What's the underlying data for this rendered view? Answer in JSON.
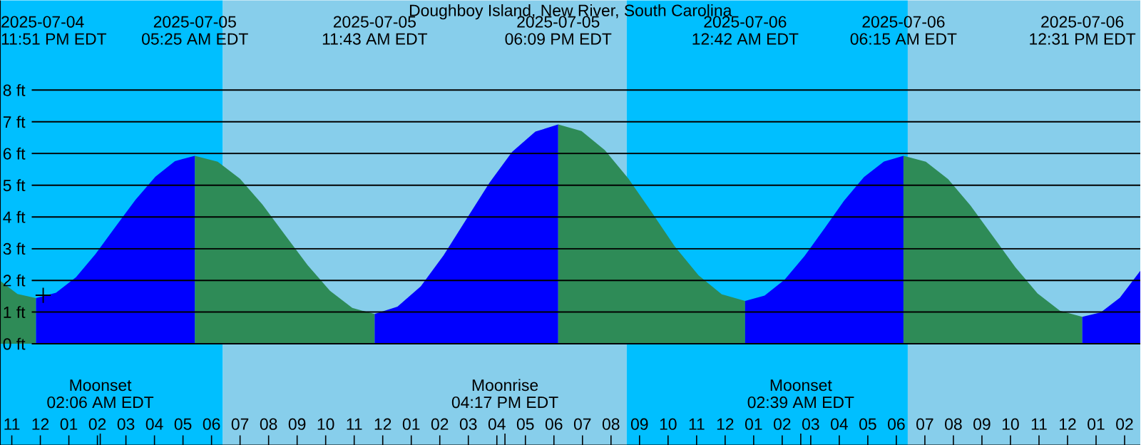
{
  "chart_data": {
    "type": "area",
    "title": "Doughboy Island, New River, South Carolina",
    "xlim": [
      "2025-07-04T22:36",
      "2025-07-06T14:33"
    ],
    "ylim": [
      -3.19,
      10.83
    ],
    "xticks": [
      {
        "value": "2025-07-04T23:00",
        "label": "11"
      },
      {
        "value": "2025-07-05T00:00",
        "label": "12"
      },
      {
        "value": "2025-07-05T01:00",
        "label": "01"
      },
      {
        "value": "2025-07-05T02:00",
        "label": "02"
      },
      {
        "value": "2025-07-05T02:06",
        "label": null
      },
      {
        "value": "2025-07-05T03:00",
        "label": "03"
      },
      {
        "value": "2025-07-05T04:00",
        "label": "04"
      },
      {
        "value": "2025-07-05T05:00",
        "label": "05"
      },
      {
        "value": "2025-07-05T06:00",
        "label": "06"
      },
      {
        "value": "2025-07-05T07:00",
        "label": "07"
      },
      {
        "value": "2025-07-05T08:00",
        "label": "08"
      },
      {
        "value": "2025-07-05T09:00",
        "label": "09"
      },
      {
        "value": "2025-07-05T10:00",
        "label": "10"
      },
      {
        "value": "2025-07-05T11:00",
        "label": "11"
      },
      {
        "value": "2025-07-05T12:00",
        "label": "12"
      },
      {
        "value": "2025-07-05T13:00",
        "label": "01"
      },
      {
        "value": "2025-07-05T14:00",
        "label": "02"
      },
      {
        "value": "2025-07-05T15:00",
        "label": "03"
      },
      {
        "value": "2025-07-05T16:00",
        "label": "04"
      },
      {
        "value": "2025-07-05T16:17",
        "label": null
      },
      {
        "value": "2025-07-05T17:00",
        "label": "05"
      },
      {
        "value": "2025-07-05T18:00",
        "label": "06"
      },
      {
        "value": "2025-07-05T19:00",
        "label": "07"
      },
      {
        "value": "2025-07-05T20:00",
        "label": "08"
      },
      {
        "value": "2025-07-05T21:00",
        "label": "09"
      },
      {
        "value": "2025-07-05T22:00",
        "label": "10"
      },
      {
        "value": "2025-07-05T23:00",
        "label": "11"
      },
      {
        "value": "2025-07-06T00:00",
        "label": "12"
      },
      {
        "value": "2025-07-06T01:00",
        "label": "01"
      },
      {
        "value": "2025-07-06T02:00",
        "label": "02"
      },
      {
        "value": "2025-07-06T02:39",
        "label": null
      },
      {
        "value": "2025-07-06T03:00",
        "label": "03"
      },
      {
        "value": "2025-07-06T04:00",
        "label": "04"
      },
      {
        "value": "2025-07-06T05:00",
        "label": "05"
      },
      {
        "value": "2025-07-06T06:00",
        "label": "06"
      },
      {
        "value": "2025-07-06T07:00",
        "label": "07"
      },
      {
        "value": "2025-07-06T08:00",
        "label": "08"
      },
      {
        "value": "2025-07-06T09:00",
        "label": "09"
      },
      {
        "value": "2025-07-06T10:00",
        "label": "10"
      },
      {
        "value": "2025-07-06T11:00",
        "label": "11"
      },
      {
        "value": "2025-07-06T12:00",
        "label": "12"
      },
      {
        "value": "2025-07-06T13:00",
        "label": "01"
      },
      {
        "value": "2025-07-06T14:00",
        "label": "02"
      }
    ],
    "yticks": [
      {
        "value": 0,
        "label": "0 ft"
      },
      {
        "value": 1,
        "label": "1 ft"
      },
      {
        "value": 2,
        "label": "2 ft"
      },
      {
        "value": 3,
        "label": "3 ft"
      },
      {
        "value": 4,
        "label": "4 ft"
      },
      {
        "value": 5,
        "label": "5 ft"
      },
      {
        "value": 6,
        "label": "6 ft"
      },
      {
        "value": 7,
        "label": "7 ft"
      },
      {
        "value": 8,
        "label": "8 ft"
      }
    ],
    "grid": "y",
    "series": [
      {
        "color": "#2e8b57",
        "x": [
          "2025-07-04T22:36",
          "2025-07-04T23:12",
          "2025-07-04T23:51"
        ],
        "values": [
          1.98,
          1.57,
          1.44
        ]
      },
      {
        "color": "#0000ff",
        "x": [
          "2025-07-04T23:51",
          "2025-07-05T00:33",
          "2025-07-05T01:15",
          "2025-07-05T01:56",
          "2025-07-05T02:38",
          "2025-07-05T03:20",
          "2025-07-05T04:02",
          "2025-07-05T04:43",
          "2025-07-05T05:25"
        ],
        "values": [
          1.44,
          1.61,
          2.1,
          2.83,
          3.69,
          4.54,
          5.27,
          5.76,
          5.93
        ]
      },
      {
        "color": "#2e8b57",
        "x": [
          "2025-07-05T05:25",
          "2025-07-05T06:13",
          "2025-07-05T07:00",
          "2025-07-05T07:47",
          "2025-07-05T08:34",
          "2025-07-05T09:22",
          "2025-07-05T10:09",
          "2025-07-05T10:56",
          "2025-07-05T11:43"
        ],
        "values": [
          5.93,
          5.74,
          5.2,
          4.39,
          3.44,
          2.48,
          1.67,
          1.13,
          0.94
        ]
      },
      {
        "color": "#0000ff",
        "x": [
          "2025-07-05T11:43",
          "2025-07-05T12:31",
          "2025-07-05T13:20",
          "2025-07-05T14:08",
          "2025-07-05T14:56",
          "2025-07-05T15:44",
          "2025-07-05T16:32",
          "2025-07-05T17:21",
          "2025-07-05T18:09"
        ],
        "values": [
          0.94,
          1.17,
          1.81,
          2.79,
          3.93,
          5.07,
          6.05,
          6.69,
          6.92
        ]
      },
      {
        "color": "#2e8b57",
        "x": [
          "2025-07-05T18:09",
          "2025-07-05T18:58",
          "2025-07-05T19:47",
          "2025-07-05T20:37",
          "2025-07-05T21:26",
          "2025-07-05T22:14",
          "2025-07-05T23:04",
          "2025-07-05T23:53",
          "2025-07-06T00:42"
        ],
        "values": [
          6.92,
          6.71,
          6.11,
          5.2,
          4.14,
          3.07,
          2.16,
          1.56,
          1.35
        ]
      },
      {
        "color": "#0000ff",
        "x": [
          "2025-07-06T00:42",
          "2025-07-06T01:23",
          "2025-07-06T02:05",
          "2025-07-06T02:47",
          "2025-07-06T03:29",
          "2025-07-06T04:10",
          "2025-07-06T04:52",
          "2025-07-06T05:34",
          "2025-07-06T06:15"
        ],
        "values": [
          1.35,
          1.52,
          2.02,
          2.77,
          3.64,
          4.51,
          5.26,
          5.75,
          5.93
        ]
      },
      {
        "color": "#2e8b57",
        "x": [
          "2025-07-06T06:15",
          "2025-07-06T07:02",
          "2025-07-06T07:49",
          "2025-07-06T08:36",
          "2025-07-06T09:23",
          "2025-07-06T10:10",
          "2025-07-06T10:57",
          "2025-07-06T11:44",
          "2025-07-06T12:31"
        ],
        "values": [
          5.93,
          5.74,
          5.19,
          4.36,
          3.39,
          2.42,
          1.59,
          1.04,
          0.85
        ]
      },
      {
        "color": "#0000ff",
        "x": [
          "2025-07-06T12:31",
          "2025-07-06T13:10",
          "2025-07-06T13:50",
          "2025-07-06T14:33"
        ],
        "values": [
          0.85,
          0.99,
          1.45,
          2.3
        ]
      },
      {
        "type": "scatter",
        "marker": "cross",
        "color": "#000000",
        "x": [
          "2025-07-05T00:06"
        ],
        "values": [
          1.53
        ]
      }
    ],
    "bands": [
      {
        "axis": "x",
        "from": "2025-07-04T22:36",
        "to": "2025-07-05T06:24",
        "color": "#00bfff"
      },
      {
        "axis": "x",
        "from": "2025-07-05T06:24",
        "to": "2025-07-05T20:33",
        "color": "#87ceeb"
      },
      {
        "axis": "x",
        "from": "2025-07-05T20:33",
        "to": "2025-07-06T06:24",
        "color": "#00bfff"
      },
      {
        "axis": "x",
        "from": "2025-07-06T06:24",
        "to": "2025-07-06T14:33",
        "color": "#87ceeb"
      }
    ],
    "annotations": [
      "2025-07-04",
      "11:51 PM EDT",
      "2025-07-05",
      "05:25 AM EDT",
      "2025-07-05",
      "11:43 AM EDT",
      "2025-07-05",
      "06:09 PM EDT",
      "2025-07-06",
      "12:42 AM EDT",
      "2025-07-06",
      "06:15 AM EDT",
      "2025-07-06",
      "12:31 PM EDT",
      "Moonset",
      "02:06 AM EDT",
      "Moonrise",
      "04:17 PM EDT",
      "Moonset",
      "02:39 AM EDT"
    ]
  }
}
